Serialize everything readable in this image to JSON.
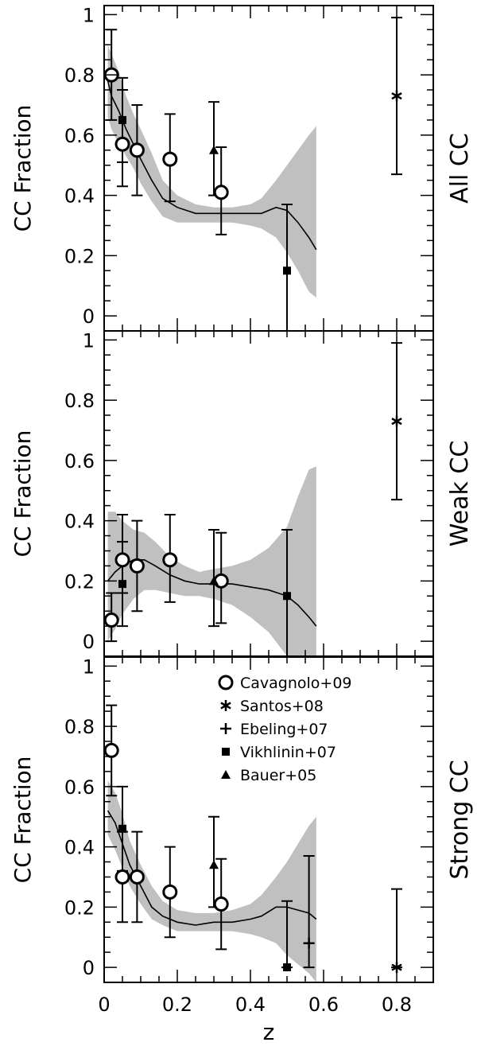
{
  "chart_data": {
    "type": "scatter",
    "shared_x": {
      "label": "z",
      "lim": [
        0,
        0.9
      ],
      "ticks": [
        0,
        0.2,
        0.4,
        0.6,
        0.8
      ],
      "tick_labels": [
        "0",
        "0.2",
        "0.4",
        "0.6",
        "0.8"
      ]
    },
    "y_ticks": [
      0,
      0.2,
      0.4,
      0.6,
      0.8,
      1
    ],
    "y_tick_labels": [
      "0",
      "0.2",
      "0.4",
      "0.6",
      "0.8",
      "1"
    ],
    "legend": {
      "placement": "top-center of bottom panel",
      "entries": [
        {
          "marker": "circle",
          "label": "Cavagnolo+09"
        },
        {
          "marker": "star",
          "label": "Santos+08"
        },
        {
          "marker": "plus",
          "label": "Ebeling+07"
        },
        {
          "marker": "square",
          "label": "Vikhlinin+07"
        },
        {
          "marker": "triangle",
          "label": "Bauer+05"
        }
      ]
    },
    "panels": [
      {
        "ylabel": "CC Fraction",
        "side_label": "All CC",
        "ylim": [
          -0.05,
          1.03
        ],
        "series": [
          {
            "marker": "circle",
            "points": [
              {
                "x": 0.02,
                "y": 0.8,
                "lo": 0.65,
                "hi": 0.95
              },
              {
                "x": 0.05,
                "y": 0.57,
                "lo": 0.43,
                "hi": 0.79
              },
              {
                "x": 0.09,
                "y": 0.55,
                "lo": 0.4,
                "hi": 0.7
              },
              {
                "x": 0.18,
                "y": 0.52,
                "lo": 0.38,
                "hi": 0.67
              },
              {
                "x": 0.32,
                "y": 0.41,
                "lo": 0.27,
                "hi": 0.56
              }
            ]
          },
          {
            "marker": "star",
            "points": [
              {
                "x": 0.8,
                "y": 0.73,
                "lo": 0.47,
                "hi": 0.99
              }
            ]
          },
          {
            "marker": "square",
            "points": [
              {
                "x": 0.05,
                "y": 0.65,
                "lo": 0.51,
                "hi": 0.75
              },
              {
                "x": 0.5,
                "y": 0.15,
                "lo": -0.05,
                "hi": 0.37
              }
            ]
          },
          {
            "marker": "triangle",
            "points": [
              {
                "x": 0.3,
                "y": 0.55,
                "lo": 0.4,
                "hi": 0.71
              }
            ]
          }
        ],
        "model": {
          "x": [
            0.01,
            0.02,
            0.04,
            0.06,
            0.08,
            0.1,
            0.13,
            0.16,
            0.2,
            0.25,
            0.3,
            0.35,
            0.4,
            0.43,
            0.47,
            0.5,
            0.53,
            0.56,
            0.58
          ],
          "y": [
            0.78,
            0.73,
            0.68,
            0.62,
            0.57,
            0.52,
            0.45,
            0.39,
            0.36,
            0.34,
            0.34,
            0.34,
            0.34,
            0.34,
            0.36,
            0.35,
            0.31,
            0.26,
            0.22
          ],
          "band_lo": [
            0.66,
            0.62,
            0.57,
            0.53,
            0.49,
            0.44,
            0.38,
            0.33,
            0.31,
            0.31,
            0.31,
            0.31,
            0.3,
            0.29,
            0.26,
            0.21,
            0.15,
            0.08,
            0.06
          ],
          "band_hi": [
            0.9,
            0.87,
            0.81,
            0.73,
            0.67,
            0.62,
            0.54,
            0.45,
            0.4,
            0.37,
            0.36,
            0.36,
            0.37,
            0.39,
            0.45,
            0.5,
            0.55,
            0.6,
            0.63
          ]
        }
      },
      {
        "ylabel": "CC Fraction",
        "side_label": "Weak CC",
        "ylim": [
          -0.05,
          1.03
        ],
        "series": [
          {
            "marker": "circle",
            "points": [
              {
                "x": 0.02,
                "y": 0.07,
                "lo": 0.0,
                "hi": 0.16
              },
              {
                "x": 0.05,
                "y": 0.27,
                "lo": 0.16,
                "hi": 0.42
              },
              {
                "x": 0.09,
                "y": 0.25,
                "lo": 0.1,
                "hi": 0.4
              },
              {
                "x": 0.18,
                "y": 0.27,
                "lo": 0.13,
                "hi": 0.42
              },
              {
                "x": 0.32,
                "y": 0.2,
                "lo": 0.06,
                "hi": 0.36
              }
            ]
          },
          {
            "marker": "star",
            "points": [
              {
                "x": 0.8,
                "y": 0.73,
                "lo": 0.47,
                "hi": 0.99
              }
            ]
          },
          {
            "marker": "square",
            "points": [
              {
                "x": 0.05,
                "y": 0.19,
                "lo": 0.05,
                "hi": 0.33
              },
              {
                "x": 0.5,
                "y": 0.15,
                "lo": -0.05,
                "hi": 0.37
              }
            ]
          },
          {
            "marker": "triangle",
            "points": [
              {
                "x": 0.3,
                "y": 0.2,
                "lo": 0.05,
                "hi": 0.37
              }
            ]
          }
        ],
        "model": {
          "x": [
            0.01,
            0.03,
            0.05,
            0.08,
            0.11,
            0.14,
            0.18,
            0.22,
            0.26,
            0.3,
            0.35,
            0.4,
            0.45,
            0.5,
            0.53,
            0.56,
            0.58
          ],
          "y": [
            0.2,
            0.23,
            0.25,
            0.27,
            0.27,
            0.25,
            0.22,
            0.2,
            0.19,
            0.19,
            0.19,
            0.18,
            0.17,
            0.15,
            0.12,
            0.08,
            0.05
          ],
          "band_lo": [
            0.0,
            0.04,
            0.09,
            0.14,
            0.17,
            0.17,
            0.16,
            0.15,
            0.15,
            0.14,
            0.12,
            0.08,
            0.03,
            -0.05,
            -0.05,
            -0.05,
            -0.05
          ],
          "band_hi": [
            0.43,
            0.43,
            0.4,
            0.37,
            0.36,
            0.33,
            0.28,
            0.25,
            0.23,
            0.24,
            0.25,
            0.27,
            0.31,
            0.38,
            0.48,
            0.57,
            0.58
          ]
        }
      },
      {
        "ylabel": "CC Fraction",
        "side_label": "Strong CC",
        "ylim": [
          -0.05,
          1.03
        ],
        "series": [
          {
            "marker": "circle",
            "points": [
              {
                "x": 0.02,
                "y": 0.72,
                "lo": 0.57,
                "hi": 0.87
              },
              {
                "x": 0.05,
                "y": 0.3,
                "lo": 0.15,
                "hi": 0.45
              },
              {
                "x": 0.09,
                "y": 0.3,
                "lo": 0.15,
                "hi": 0.45
              },
              {
                "x": 0.18,
                "y": 0.25,
                "lo": 0.1,
                "hi": 0.4
              },
              {
                "x": 0.32,
                "y": 0.21,
                "lo": 0.06,
                "hi": 0.36
              }
            ]
          },
          {
            "marker": "star",
            "points": [
              {
                "x": 0.8,
                "y": 0.0,
                "lo": 0.0,
                "hi": 0.26
              }
            ]
          },
          {
            "marker": "plus",
            "points": [
              {
                "x": 0.56,
                "y": 0.08,
                "lo": 0.0,
                "hi": 0.37
              }
            ]
          },
          {
            "marker": "square",
            "points": [
              {
                "x": 0.05,
                "y": 0.46,
                "lo": 0.32,
                "hi": 0.6
              },
              {
                "x": 0.5,
                "y": 0.0,
                "lo": 0.0,
                "hi": 0.22
              }
            ]
          },
          {
            "marker": "triangle",
            "points": [
              {
                "x": 0.3,
                "y": 0.34,
                "lo": 0.2,
                "hi": 0.5
              }
            ]
          }
        ],
        "model": {
          "x": [
            0.01,
            0.03,
            0.05,
            0.07,
            0.1,
            0.13,
            0.16,
            0.2,
            0.25,
            0.3,
            0.35,
            0.4,
            0.43,
            0.47,
            0.5,
            0.53,
            0.56,
            0.58
          ],
          "y": [
            0.52,
            0.48,
            0.41,
            0.34,
            0.27,
            0.2,
            0.17,
            0.15,
            0.14,
            0.15,
            0.15,
            0.16,
            0.17,
            0.2,
            0.2,
            0.19,
            0.18,
            0.16
          ],
          "band_lo": [
            0.44,
            0.39,
            0.33,
            0.27,
            0.21,
            0.16,
            0.14,
            0.12,
            0.12,
            0.12,
            0.12,
            0.11,
            0.1,
            0.08,
            0.04,
            0.01,
            -0.02,
            -0.05
          ],
          "band_hi": [
            0.62,
            0.58,
            0.51,
            0.42,
            0.34,
            0.27,
            0.22,
            0.19,
            0.18,
            0.18,
            0.19,
            0.21,
            0.24,
            0.3,
            0.35,
            0.41,
            0.47,
            0.5
          ]
        }
      }
    ]
  }
}
